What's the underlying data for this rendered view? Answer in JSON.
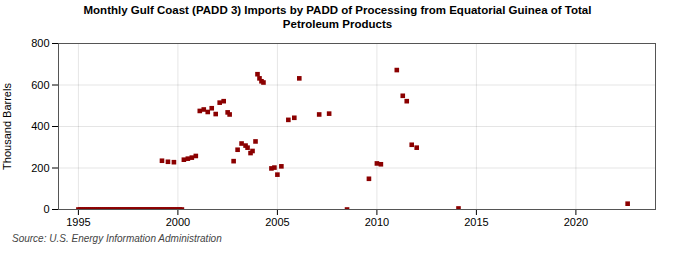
{
  "chart_data": {
    "type": "scatter",
    "title": "Monthly Gulf Coast (PADD 3) Imports by PADD of Processing from Equatorial Guinea of Total\nPetroleum Products",
    "ylabel": "Thousand Barrels",
    "caption": "Source: U.S. Energy Information Administration",
    "color": "#8b0000",
    "marker": "square",
    "grid": true,
    "xlim": [
      1994.0,
      2024.0
    ],
    "ylim": [
      0,
      800
    ],
    "xticks": [
      1995,
      2000,
      2005,
      2010,
      2015,
      2020
    ],
    "yticks": [
      0,
      200,
      400,
      600,
      800
    ],
    "x": [
      1995.0,
      1995.1,
      1995.2,
      1995.3,
      1995.4,
      1995.5,
      1995.6,
      1995.7,
      1995.8,
      1995.9,
      1996.0,
      1996.1,
      1996.2,
      1996.3,
      1996.4,
      1996.5,
      1996.6,
      1996.7,
      1996.8,
      1996.9,
      1997.0,
      1997.1,
      1997.2,
      1997.3,
      1997.4,
      1997.5,
      1997.6,
      1997.7,
      1997.8,
      1997.9,
      1998.0,
      1998.1,
      1998.2,
      1998.3,
      1998.4,
      1998.5,
      1998.6,
      1998.7,
      1998.8,
      1998.9,
      1999.0,
      1999.1,
      1999.2,
      1999.3,
      1999.4,
      1999.5,
      1999.6,
      1999.7,
      1999.8,
      1999.9,
      2000.0,
      2000.1,
      2000.2,
      1999.2,
      1999.5,
      1999.8,
      2000.3,
      2000.5,
      2000.7,
      2000.9,
      2001.1,
      2001.3,
      2001.5,
      2001.7,
      2001.9,
      2002.1,
      2002.3,
      2002.5,
      2002.6,
      2002.8,
      2003.0,
      2003.2,
      2003.4,
      2003.5,
      2003.65,
      2003.75,
      2003.9,
      2004.0,
      2004.1,
      2004.2,
      2004.3,
      2004.7,
      2004.85,
      2005.0,
      2005.2,
      2005.55,
      2005.85,
      2006.1,
      2007.1,
      2007.6,
      2008.5,
      2009.6,
      2010.0,
      2010.2,
      2011.0,
      2011.3,
      2011.5,
      2011.75,
      2012.0,
      2014.1,
      2022.6
    ],
    "values": [
      0,
      0,
      0,
      0,
      0,
      0,
      0,
      0,
      0,
      0,
      0,
      0,
      0,
      0,
      0,
      0,
      0,
      0,
      0,
      0,
      0,
      0,
      0,
      0,
      0,
      0,
      0,
      0,
      0,
      0,
      0,
      0,
      0,
      0,
      0,
      0,
      0,
      0,
      0,
      0,
      0,
      0,
      0,
      0,
      0,
      0,
      0,
      0,
      0,
      0,
      0,
      0,
      0,
      235,
      230,
      228,
      240,
      245,
      250,
      258,
      475,
      482,
      470,
      488,
      460,
      515,
      522,
      468,
      458,
      233,
      288,
      318,
      308,
      298,
      272,
      282,
      328,
      652,
      632,
      618,
      612,
      198,
      202,
      168,
      208,
      432,
      442,
      632,
      458,
      462,
      0,
      148,
      222,
      218,
      672,
      548,
      522,
      312,
      298,
      5,
      28
    ]
  }
}
